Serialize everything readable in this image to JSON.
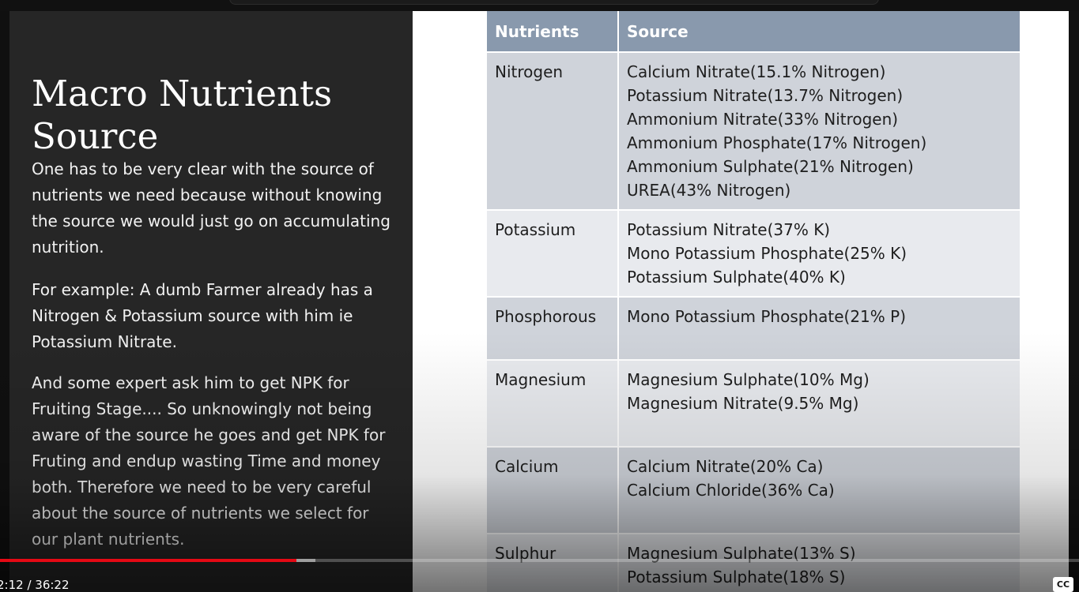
{
  "slide": {
    "title": "Macro Nutrients Source",
    "paragraphs": [
      "One has to be very clear with the source of nutrients we need because without knowing the source we would just go on accumulating nutrition.",
      "For example: A dumb Farmer already has a Nitrogen & Potassium source with him ie Potassium Nitrate.",
      "And some expert ask him to get NPK for Fruiting Stage.... So unknowingly not being aware of the source he goes and get NPK for Fruting and endup wasting Time and money both. Therefore we need to be very careful about the source of nutrients we select for our plant nutrients."
    ],
    "table": {
      "headers": [
        "Nutrients",
        "Source"
      ],
      "rows": [
        {
          "nutrient": "Nitrogen",
          "sources": [
            "Calcium Nitrate(15.1% Nitrogen)",
            "Potassium Nitrate(13.7% Nitrogen)",
            "Ammonium Nitrate(33% Nitrogen)",
            "Ammonium Phosphate(17% Nitrogen)",
            "Ammonium Sulphate(21% Nitrogen)",
            "UREA(43% Nitrogen)"
          ]
        },
        {
          "nutrient": "Potassium",
          "sources": [
            "Potassium Nitrate(37% K)",
            "Mono Potassium Phosphate(25% K)",
            "Potassium Sulphate(40% K)"
          ]
        },
        {
          "nutrient": "Phosphorous",
          "sources": [
            "Mono Potassium Phosphate(21% P)"
          ]
        },
        {
          "nutrient": "Magnesium",
          "sources": [
            "Magnesium Sulphate(10% Mg)",
            "Magnesium Nitrate(9.5% Mg)"
          ]
        },
        {
          "nutrient": "Calcium",
          "sources": [
            "Calcium Nitrate(20% Ca)",
            "Calcium Chloride(36% Ca)"
          ]
        },
        {
          "nutrient": "Sulphur",
          "sources": [
            "Magnesium Sulphate(13% S)",
            "Potassium Sulphate(18% S)"
          ]
        }
      ]
    }
  },
  "player": {
    "time_display": "2:12 / 36:22",
    "played_fraction": 0.275,
    "buffered_fraction": 0.292,
    "cc_label": "CC",
    "progress_color": "#e50914"
  }
}
